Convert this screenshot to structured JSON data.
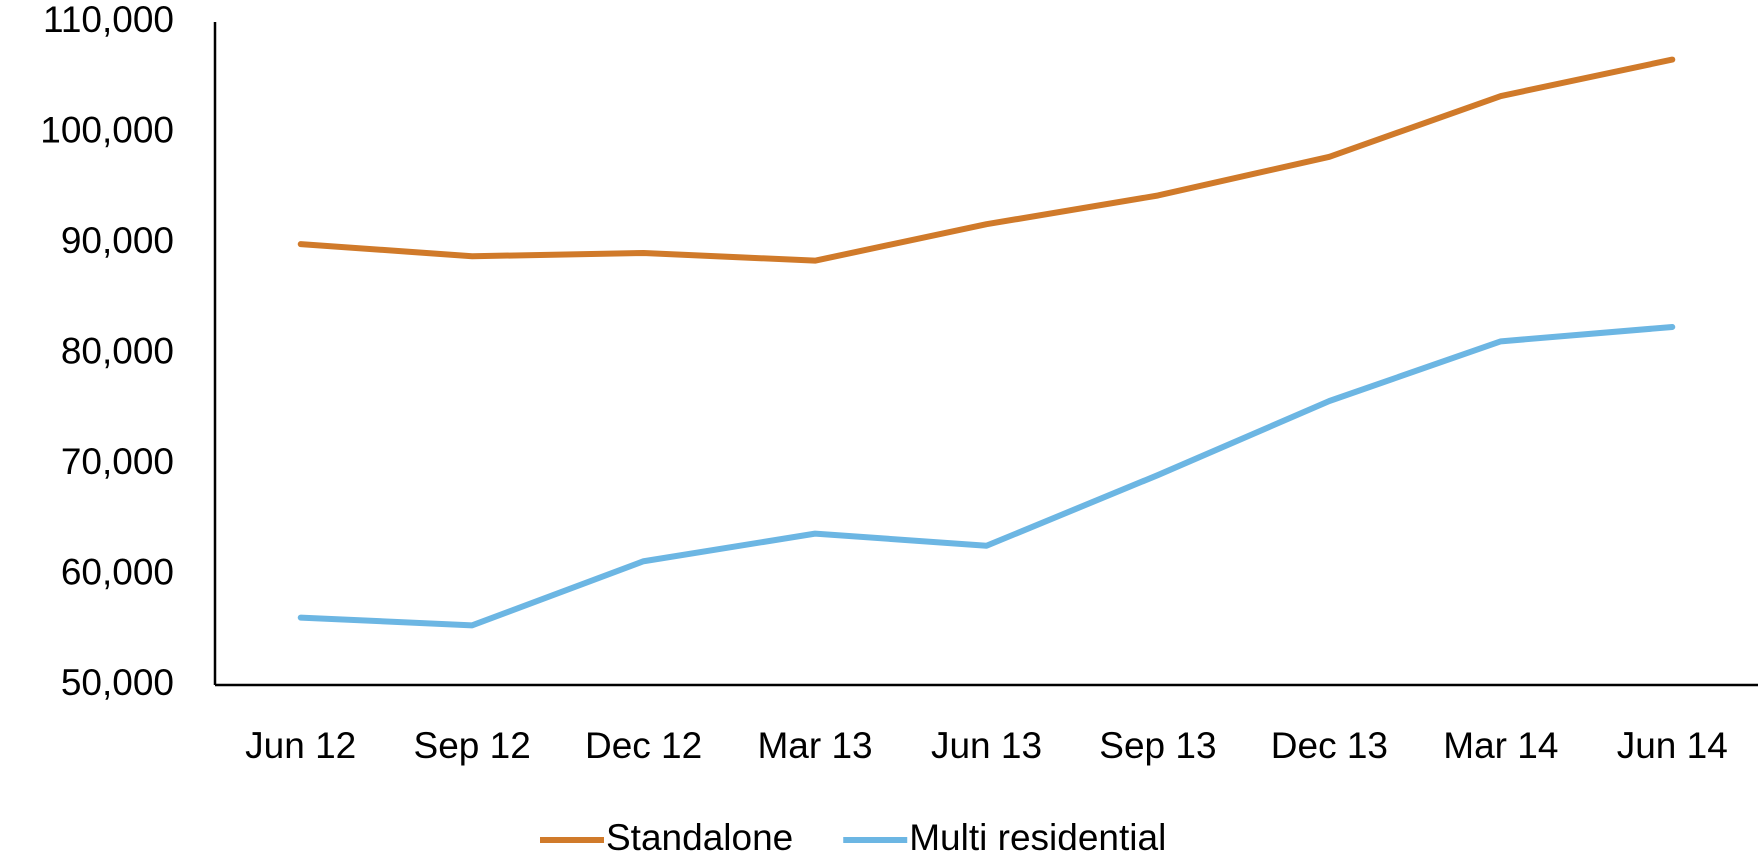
{
  "chart_data": {
    "type": "line",
    "categories": [
      "Jun 12",
      "Sep 12",
      "Dec 12",
      "Mar 13",
      "Jun 13",
      "Sep 13",
      "Dec 13",
      "Mar 14",
      "Jun 14"
    ],
    "series": [
      {
        "name": "Standalone",
        "color": "#d07a2a",
        "values": [
          89900,
          88800,
          89100,
          88400,
          91700,
          94300,
          97800,
          103300,
          106600
        ]
      },
      {
        "name": "Multi residential",
        "color": "#6cb6e3",
        "values": [
          56100,
          55400,
          61200,
          63700,
          62600,
          69000,
          75700,
          81100,
          82400
        ]
      }
    ],
    "ylim": [
      50000,
      110000
    ],
    "yticks": [
      {
        "value": 50000,
        "label": "50,000"
      },
      {
        "value": 60000,
        "label": "60,000"
      },
      {
        "value": 70000,
        "label": "70,000"
      },
      {
        "value": 80000,
        "label": "80,000"
      },
      {
        "value": 90000,
        "label": "90,000"
      },
      {
        "value": 100000,
        "label": "100,000"
      },
      {
        "value": 110000,
        "label": "110,000"
      }
    ],
    "grid": false,
    "legend": "bottom"
  }
}
